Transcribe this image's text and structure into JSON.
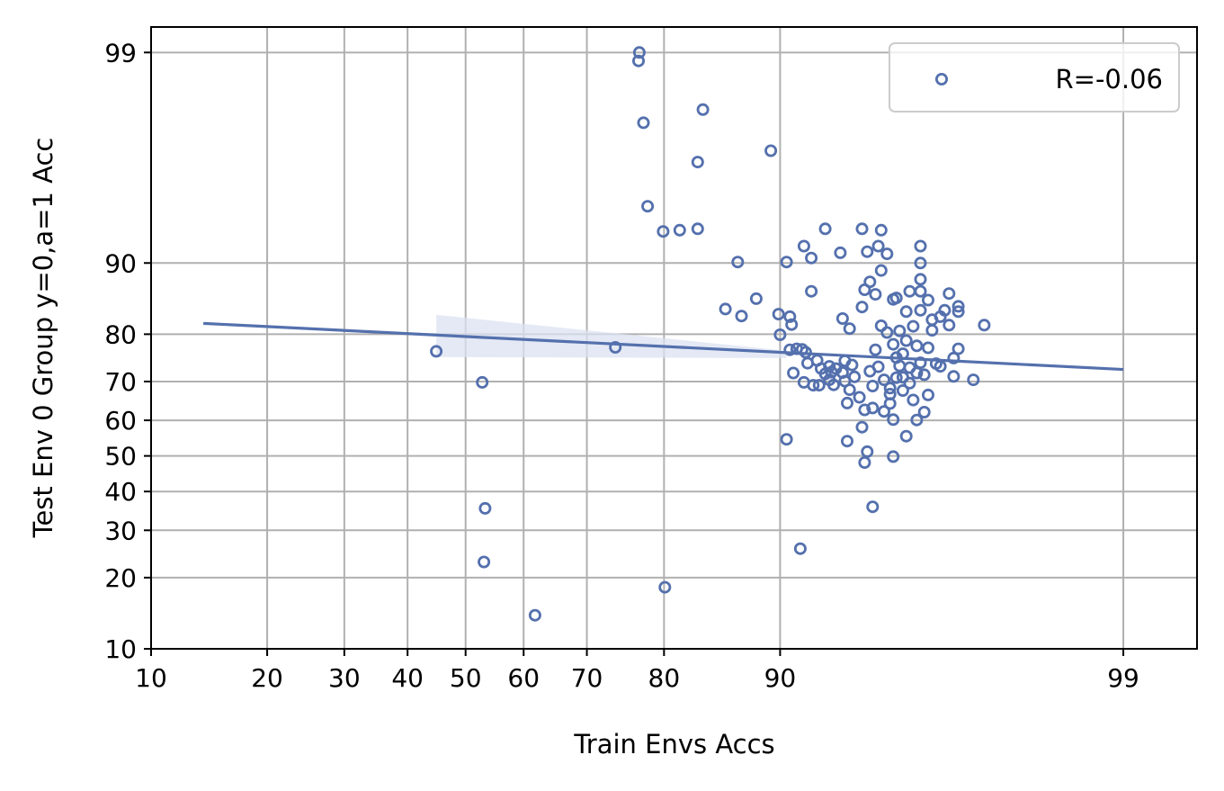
{
  "chart_data": {
    "type": "scatter",
    "xlabel": "Train Envs Accs",
    "ylabel": "Test Env 0 Group y=0,a=1 Acc",
    "x_scale": "logit",
    "y_scale": "logit",
    "xlim": [
      10,
      99.4
    ],
    "ylim": [
      10,
      99.25
    ],
    "x_ticks": [
      10,
      20,
      30,
      40,
      50,
      60,
      70,
      80,
      90,
      99
    ],
    "y_ticks": [
      10,
      20,
      30,
      40,
      50,
      60,
      70,
      80,
      90,
      99
    ],
    "grid": true,
    "legend_position": "top-right",
    "colors": {
      "marker": "#5470ad",
      "line": "#5470ad",
      "band": "#dbe2f1",
      "grid": "#b0b0b0"
    },
    "series": [
      {
        "name": "R=-0.06",
        "points": [
          [
            44.9,
            76.7
          ],
          [
            52.9,
            69.8
          ],
          [
            53.4,
            35.5
          ],
          [
            53.2,
            23.0
          ],
          [
            61.9,
            14.0
          ],
          [
            74.0,
            77.5
          ],
          [
            77.0,
            98.9
          ],
          [
            77.1,
            99.0
          ],
          [
            77.6,
            97.8
          ],
          [
            78.1,
            94.5
          ],
          [
            80.1,
            18.3
          ],
          [
            79.9,
            92.8
          ],
          [
            81.7,
            92.9
          ],
          [
            83.5,
            93.0
          ],
          [
            83.5,
            96.6
          ],
          [
            84.0,
            98.1
          ],
          [
            86.0,
            84.2
          ],
          [
            87.0,
            90.1
          ],
          [
            87.3,
            83.1
          ],
          [
            88.4,
            85.7
          ],
          [
            89.4,
            97.0
          ],
          [
            89.9,
            83.4
          ],
          [
            90.0,
            79.9
          ],
          [
            90.4,
            54.7
          ],
          [
            90.4,
            90.1
          ],
          [
            90.6,
            83.0
          ],
          [
            90.7,
            81.7
          ],
          [
            90.6,
            77.0
          ],
          [
            90.8,
            72.0
          ],
          [
            91.0,
            77.2
          ],
          [
            91.2,
            25.8
          ],
          [
            91.4,
            91.6
          ],
          [
            91.3,
            77.1
          ],
          [
            91.4,
            69.8
          ],
          [
            91.5,
            76.5
          ],
          [
            91.8,
            90.5
          ],
          [
            91.8,
            86.7
          ],
          [
            91.6,
            74.2
          ],
          [
            91.9,
            69.1
          ],
          [
            92.2,
            69.1
          ],
          [
            92.1,
            74.8
          ],
          [
            92.3,
            73.0
          ],
          [
            92.5,
            71.8
          ],
          [
            92.7,
            73.5
          ],
          [
            92.5,
            93.0
          ],
          [
            92.8,
            72.2
          ],
          [
            92.7,
            70.4
          ],
          [
            92.9,
            69.2
          ],
          [
            93.0,
            73.0
          ],
          [
            93.3,
            72.1
          ],
          [
            93.2,
            91.0
          ],
          [
            93.3,
            82.7
          ],
          [
            93.4,
            70.1
          ],
          [
            93.4,
            74.7
          ],
          [
            93.5,
            54.2
          ],
          [
            93.5,
            64.6
          ],
          [
            93.6,
            81.0
          ],
          [
            93.6,
            68.0
          ],
          [
            93.7,
            73.8
          ],
          [
            93.8,
            71.1
          ],
          [
            94.0,
            66.1
          ],
          [
            94.1,
            58.1
          ],
          [
            94.1,
            93.0
          ],
          [
            94.1,
            84.5
          ],
          [
            94.2,
            86.9
          ],
          [
            94.2,
            62.8
          ],
          [
            94.2,
            48.1
          ],
          [
            94.3,
            51.2
          ],
          [
            94.3,
            91.1
          ],
          [
            94.4,
            87.9
          ],
          [
            94.4,
            72.4
          ],
          [
            94.5,
            35.9
          ],
          [
            94.5,
            63.3
          ],
          [
            94.5,
            68.9
          ],
          [
            94.6,
            86.3
          ],
          [
            94.6,
            77.0
          ],
          [
            94.7,
            91.6
          ],
          [
            94.7,
            73.4
          ],
          [
            94.8,
            81.5
          ],
          [
            94.8,
            92.9
          ],
          [
            94.8,
            89.2
          ],
          [
            94.9,
            70.4
          ],
          [
            94.9,
            62.4
          ],
          [
            95.0,
            90.9
          ],
          [
            95.0,
            80.3
          ],
          [
            95.1,
            66.9
          ],
          [
            95.1,
            68.4
          ],
          [
            95.1,
            64.5
          ],
          [
            95.2,
            78.1
          ],
          [
            95.2,
            85.6
          ],
          [
            95.2,
            49.8
          ],
          [
            95.2,
            60.2
          ],
          [
            95.3,
            70.9
          ],
          [
            95.3,
            75.4
          ],
          [
            95.3,
            85.8
          ],
          [
            95.4,
            80.6
          ],
          [
            95.4,
            73.6
          ],
          [
            95.5,
            71.0
          ],
          [
            95.5,
            76.2
          ],
          [
            95.5,
            67.8
          ],
          [
            95.6,
            55.6
          ],
          [
            95.6,
            83.8
          ],
          [
            95.6,
            78.8
          ],
          [
            95.7,
            73.2
          ],
          [
            95.7,
            86.7
          ],
          [
            95.7,
            69.6
          ],
          [
            95.8,
            65.4
          ],
          [
            95.8,
            81.4
          ],
          [
            95.9,
            72.0
          ],
          [
            95.9,
            77.8
          ],
          [
            95.9,
            60.1
          ],
          [
            96.0,
            91.6
          ],
          [
            96.0,
            88.2
          ],
          [
            96.0,
            84.0
          ],
          [
            96.0,
            86.7
          ],
          [
            96.0,
            74.3
          ],
          [
            96.0,
            90.0
          ],
          [
            96.1,
            62.2
          ],
          [
            96.1,
            71.6
          ],
          [
            96.2,
            66.7
          ],
          [
            96.2,
            85.5
          ],
          [
            96.2,
            77.4
          ],
          [
            96.3,
            82.5
          ],
          [
            96.3,
            80.7
          ],
          [
            96.4,
            74.1
          ],
          [
            96.5,
            83.0
          ],
          [
            96.5,
            73.5
          ],
          [
            96.6,
            84.0
          ],
          [
            96.7,
            81.6
          ],
          [
            96.7,
            86.4
          ],
          [
            96.8,
            75.3
          ],
          [
            96.8,
            71.2
          ],
          [
            96.9,
            77.2
          ],
          [
            96.9,
            83.8
          ],
          [
            96.9,
            84.6
          ],
          [
            97.2,
            70.4
          ],
          [
            97.4,
            81.6
          ]
        ]
      }
    ],
    "regression": {
      "x_range": [
        13.8,
        99.0
      ],
      "y_range": [
        81.9,
        72.8
      ],
      "ci_x_range": [
        44.9,
        90.4
      ],
      "ci_upper": [
        83.3,
        76.8
      ],
      "ci_lower": [
        75.5,
        75.3
      ]
    }
  }
}
